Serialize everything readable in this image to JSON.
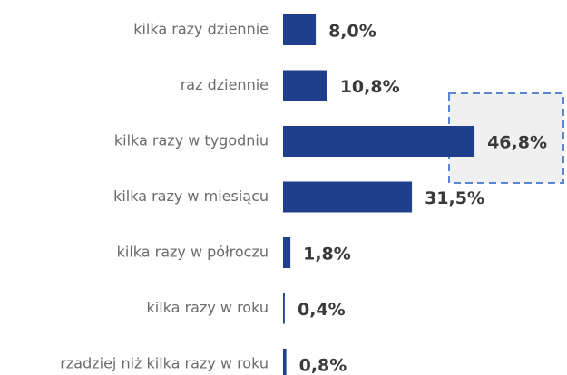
{
  "chart_data": {
    "type": "barh",
    "categories": [
      "kilka razy dziennie",
      "raz dziennie",
      "kilka razy w tygodniu",
      "kilka razy w miesiącu",
      "kilka razy w półroczu",
      "kilka razy w roku",
      "rzadziej niż kilka razy w roku"
    ],
    "values": [
      8.0,
      10.8,
      46.8,
      31.5,
      1.8,
      0.4,
      0.8
    ],
    "value_labels": [
      "8,0%",
      "10,8%",
      "46,8%",
      "31,5%",
      "1,8%",
      "0,4%",
      "0,8%"
    ],
    "color": "#1f3f8c"
  }
}
